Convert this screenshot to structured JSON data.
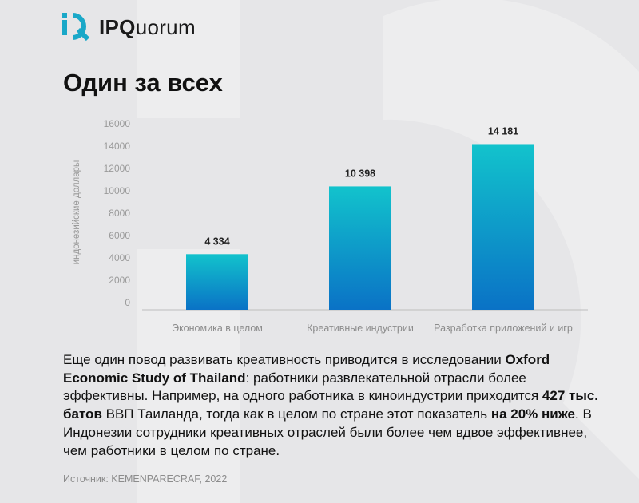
{
  "brand": {
    "logo_text_bold": "IPQ",
    "logo_text_rest": "uorum"
  },
  "title": "Один за всех",
  "chart_data": {
    "type": "bar",
    "ylabel": "индонезийские доллары",
    "ylim": [
      0,
      16000
    ],
    "yticks": [
      0,
      2000,
      4000,
      6000,
      8000,
      10000,
      12000,
      14000,
      16000
    ],
    "categories": [
      "Экономика в целом",
      "Креативные индустрии",
      "Разработка приложений и игр"
    ],
    "values": [
      4334,
      10398,
      14181
    ],
    "value_labels": [
      "4 334",
      "10 398",
      "14 181"
    ],
    "colors": {
      "bar_top": "#12c3cc",
      "bar_bottom": "#0a72c6"
    }
  },
  "text": {
    "p1": "Еще один повод развивать креативность приводится в исследовании ",
    "b1": "Oxford Economic Study of Thailand",
    "p2": ": работники развлекательной отрасли более эффективны. Например, на одного работника в киноиндустрии приходится ",
    "b2": "427 тыс. батов",
    "p3": " ВВП Таиланда, тогда как в целом по стране этот показатель ",
    "b3": "на 20% ниже",
    "p4": ". В Индонезии сотрудники креативных отраслей были более чем вдвое эффективнее, чем работники в целом по стране."
  },
  "source": "Источник: KEMENPARECRAF, 2022"
}
